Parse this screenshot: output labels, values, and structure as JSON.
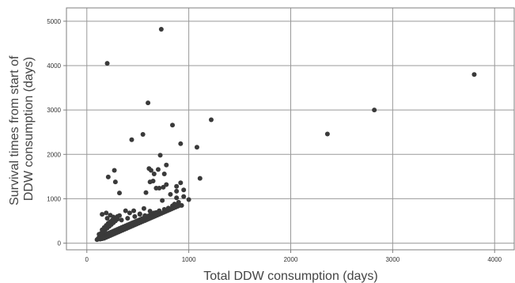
{
  "chart_data": {
    "type": "scatter",
    "xlabel": "Total DDW consumption (days)",
    "ylabel_lines": [
      "Survival times from start of",
      "DDW consumption (days)"
    ],
    "xlim": [
      -200,
      4200
    ],
    "ylim": [
      -150,
      5300
    ],
    "x_ticks": [
      0,
      1000,
      2000,
      3000,
      4000
    ],
    "y_ticks": [
      0,
      1000,
      2000,
      3000,
      4000,
      5000
    ],
    "grid": true,
    "colors": {
      "point": "#3a3a3a",
      "grid": "#999999",
      "axis": "#7f7f7f"
    },
    "points": [
      [
        730,
        4820
      ],
      [
        200,
        4050
      ],
      [
        3800,
        3800
      ],
      [
        2820,
        3000
      ],
      [
        600,
        3160
      ],
      [
        1220,
        2780
      ],
      [
        840,
        2660
      ],
      [
        550,
        2450
      ],
      [
        2360,
        2460
      ],
      [
        440,
        2330
      ],
      [
        920,
        2240
      ],
      [
        1080,
        2160
      ],
      [
        720,
        1980
      ],
      [
        780,
        1760
      ],
      [
        270,
        1640
      ],
      [
        610,
        1680
      ],
      [
        700,
        1660
      ],
      [
        630,
        1640
      ],
      [
        660,
        1560
      ],
      [
        760,
        1560
      ],
      [
        210,
        1490
      ],
      [
        1110,
        1460
      ],
      [
        650,
        1400
      ],
      [
        620,
        1380
      ],
      [
        280,
        1380
      ],
      [
        920,
        1360
      ],
      [
        780,
        1320
      ],
      [
        880,
        1280
      ],
      [
        680,
        1240
      ],
      [
        710,
        1240
      ],
      [
        750,
        1260
      ],
      [
        950,
        1200
      ],
      [
        880,
        1170
      ],
      [
        580,
        1140
      ],
      [
        320,
        1130
      ],
      [
        820,
        1100
      ],
      [
        950,
        1050
      ],
      [
        1000,
        980
      ],
      [
        880,
        1020
      ],
      [
        740,
        960
      ],
      [
        900,
        920
      ],
      [
        860,
        880
      ],
      [
        420,
        680
      ],
      [
        520,
        660
      ],
      [
        560,
        780
      ],
      [
        620,
        720
      ],
      [
        660,
        680
      ],
      [
        710,
        730
      ],
      [
        760,
        760
      ],
      [
        800,
        790
      ],
      [
        840,
        840
      ],
      [
        880,
        860
      ],
      [
        930,
        850
      ],
      [
        150,
        650
      ],
      [
        190,
        680
      ],
      [
        230,
        630
      ],
      [
        380,
        730
      ],
      [
        460,
        730
      ],
      [
        200,
        560
      ],
      [
        260,
        590
      ],
      [
        300,
        600
      ],
      [
        340,
        520
      ],
      [
        400,
        560
      ],
      [
        470,
        600
      ],
      [
        520,
        650
      ],
      [
        570,
        620
      ],
      [
        600,
        610
      ],
      [
        640,
        650
      ],
      [
        680,
        680
      ],
      [
        120,
        130
      ],
      [
        140,
        150
      ],
      [
        160,
        170
      ],
      [
        180,
        190
      ],
      [
        200,
        210
      ],
      [
        220,
        230
      ],
      [
        240,
        250
      ],
      [
        260,
        270
      ],
      [
        280,
        290
      ],
      [
        300,
        310
      ],
      [
        320,
        330
      ],
      [
        340,
        350
      ],
      [
        360,
        370
      ],
      [
        380,
        390
      ],
      [
        400,
        410
      ],
      [
        420,
        430
      ],
      [
        440,
        450
      ],
      [
        460,
        470
      ],
      [
        480,
        490
      ],
      [
        500,
        510
      ],
      [
        520,
        530
      ],
      [
        540,
        550
      ],
      [
        560,
        570
      ],
      [
        580,
        590
      ],
      [
        600,
        610
      ],
      [
        620,
        630
      ],
      [
        640,
        650
      ],
      [
        660,
        670
      ],
      [
        680,
        690
      ],
      [
        110,
        100
      ],
      [
        130,
        110
      ],
      [
        150,
        120
      ],
      [
        170,
        140
      ],
      [
        190,
        160
      ],
      [
        210,
        180
      ],
      [
        230,
        200
      ],
      [
        250,
        220
      ],
      [
        270,
        240
      ],
      [
        290,
        260
      ],
      [
        310,
        280
      ],
      [
        330,
        300
      ],
      [
        350,
        320
      ],
      [
        370,
        340
      ],
      [
        390,
        360
      ],
      [
        410,
        380
      ],
      [
        430,
        400
      ],
      [
        450,
        420
      ],
      [
        470,
        440
      ],
      [
        490,
        460
      ],
      [
        510,
        480
      ],
      [
        120,
        200
      ],
      [
        140,
        220
      ],
      [
        160,
        260
      ],
      [
        180,
        300
      ],
      [
        200,
        340
      ],
      [
        220,
        380
      ],
      [
        240,
        420
      ],
      [
        260,
        460
      ],
      [
        280,
        500
      ],
      [
        300,
        540
      ],
      [
        150,
        300
      ],
      [
        170,
        350
      ],
      [
        190,
        400
      ],
      [
        210,
        450
      ],
      [
        230,
        480
      ],
      [
        250,
        520
      ],
      [
        280,
        560
      ],
      [
        320,
        620
      ],
      [
        100,
        80
      ],
      [
        110,
        90
      ],
      [
        130,
        90
      ],
      [
        150,
        100
      ],
      [
        170,
        110
      ],
      [
        190,
        130
      ],
      [
        210,
        150
      ],
      [
        230,
        170
      ],
      [
        250,
        190
      ],
      [
        270,
        210
      ],
      [
        290,
        230
      ],
      [
        310,
        250
      ],
      [
        330,
        270
      ],
      [
        350,
        290
      ],
      [
        370,
        310
      ],
      [
        390,
        330
      ],
      [
        410,
        350
      ],
      [
        430,
        370
      ],
      [
        450,
        390
      ],
      [
        470,
        410
      ],
      [
        490,
        430
      ],
      [
        510,
        450
      ],
      [
        530,
        470
      ],
      [
        550,
        490
      ],
      [
        570,
        510
      ],
      [
        590,
        530
      ],
      [
        610,
        550
      ],
      [
        630,
        570
      ],
      [
        650,
        590
      ],
      [
        670,
        610
      ],
      [
        690,
        630
      ],
      [
        710,
        650
      ],
      [
        730,
        670
      ],
      [
        750,
        690
      ],
      [
        770,
        710
      ],
      [
        790,
        730
      ],
      [
        810,
        750
      ],
      [
        830,
        770
      ],
      [
        850,
        790
      ],
      [
        870,
        810
      ],
      [
        890,
        830
      ],
      [
        910,
        850
      ]
    ]
  }
}
